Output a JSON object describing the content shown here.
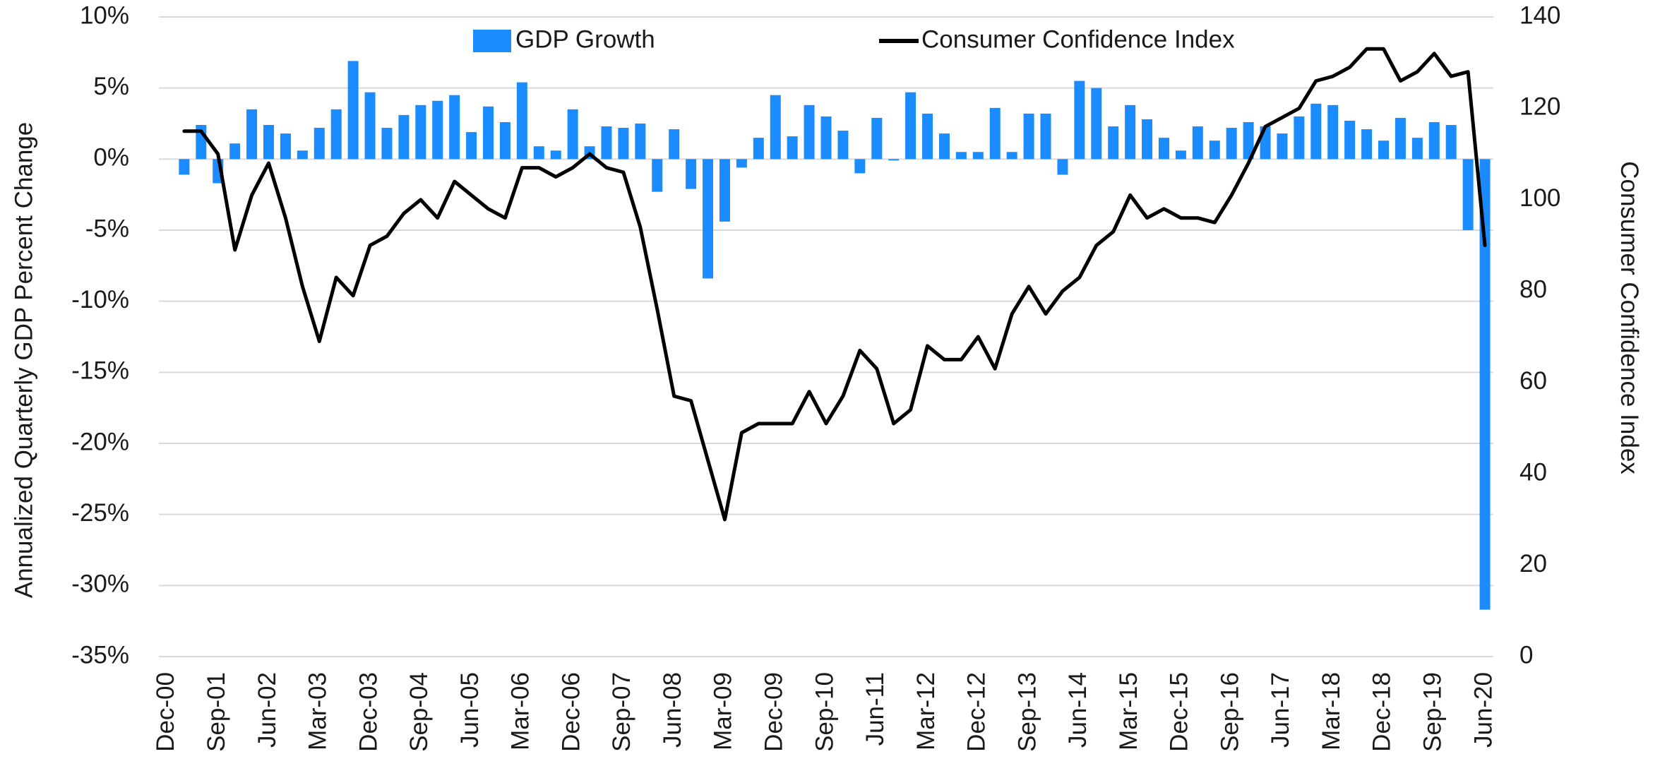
{
  "chart_data": {
    "type": "bar-line",
    "ylabel": "Annualized Quarterly GDP Percent Change",
    "y2label": "Consumer Confidence Index",
    "legend": "top",
    "grid": true,
    "categories": [
      "Dec-00",
      null,
      null,
      "Sep-01",
      null,
      null,
      "Jun-02",
      null,
      null,
      "Mar-03",
      null,
      null,
      "Dec-03",
      null,
      null,
      "Sep-04",
      null,
      null,
      "Jun-05",
      null,
      null,
      "Mar-06",
      null,
      null,
      "Dec-06",
      null,
      null,
      "Sep-07",
      null,
      null,
      "Jun-08",
      null,
      null,
      "Mar-09",
      null,
      null,
      "Dec-09",
      null,
      null,
      "Sep-10",
      null,
      null,
      "Jun-11",
      null,
      null,
      "Mar-12",
      null,
      null,
      "Dec-12",
      null,
      null,
      "Sep-13",
      null,
      null,
      "Jun-14",
      null,
      null,
      "Mar-15",
      null,
      null,
      "Dec-15",
      null,
      null,
      "Sep-16",
      null,
      null,
      "Jun-17",
      null,
      null,
      "Mar-18",
      null,
      null,
      "Dec-18",
      null,
      null,
      "Sep-19",
      null,
      null,
      "Jun-20"
    ],
    "ylim": [
      -35,
      10
    ],
    "yticks": [
      {
        "value": -35,
        "label": "-35%"
      },
      {
        "value": -30,
        "label": "-30%"
      },
      {
        "value": -25,
        "label": "-25%"
      },
      {
        "value": -20,
        "label": "-20%"
      },
      {
        "value": -15,
        "label": "-15%"
      },
      {
        "value": -10,
        "label": "-10%"
      },
      {
        "value": -5,
        "label": "-5%"
      },
      {
        "value": 0,
        "label": "0%"
      },
      {
        "value": 5,
        "label": "5%"
      },
      {
        "value": 10,
        "label": "10%"
      }
    ],
    "y2lim": [
      0,
      140
    ],
    "y2ticks": [
      0,
      20,
      40,
      60,
      80,
      100,
      120,
      140
    ],
    "series": [
      {
        "name": "GDP Growth",
        "type": "bar",
        "color": "#1a8cff",
        "values": [
          null,
          -1.1,
          2.4,
          -1.7,
          1.1,
          3.5,
          2.4,
          1.8,
          0.6,
          2.2,
          3.5,
          6.9,
          4.7,
          2.2,
          3.1,
          3.8,
          4.1,
          4.5,
          1.9,
          3.7,
          2.6,
          5.4,
          0.9,
          0.6,
          3.5,
          0.9,
          2.3,
          2.2,
          2.5,
          -2.3,
          2.1,
          -2.1,
          -8.4,
          -4.4,
          -0.6,
          1.5,
          4.5,
          1.6,
          3.8,
          3.0,
          2.0,
          -1.0,
          2.9,
          -0.1,
          4.7,
          3.2,
          1.8,
          0.5,
          0.5,
          3.6,
          0.5,
          3.2,
          3.2,
          -1.1,
          5.5,
          5.0,
          2.3,
          3.8,
          2.8,
          1.5,
          0.6,
          2.3,
          1.3,
          2.2,
          2.6,
          2.3,
          1.8,
          3.0,
          3.9,
          3.8,
          2.7,
          2.1,
          1.3,
          2.9,
          1.5,
          2.6,
          2.4,
          -5.0,
          -31.7
        ]
      },
      {
        "name": "Consumer Confidence Index",
        "type": "line",
        "color": "#000000",
        "axis": "y2",
        "values": [
          null,
          115,
          115,
          110,
          89,
          101,
          108,
          96,
          81,
          69,
          83,
          79,
          90,
          92,
          97,
          100,
          96,
          104,
          101,
          98,
          96,
          107,
          107,
          105,
          107,
          110,
          107,
          106,
          94,
          76,
          57,
          56,
          43,
          30,
          49,
          51,
          51,
          51,
          58,
          51,
          57,
          67,
          63,
          51,
          54,
          68,
          65,
          65,
          70,
          63,
          75,
          81,
          75,
          80,
          83,
          90,
          93,
          101,
          96,
          98,
          96,
          96,
          95,
          101,
          108,
          116,
          118,
          120,
          126,
          127,
          129,
          133,
          133,
          126,
          128,
          132,
          127,
          128,
          90
        ]
      }
    ]
  }
}
